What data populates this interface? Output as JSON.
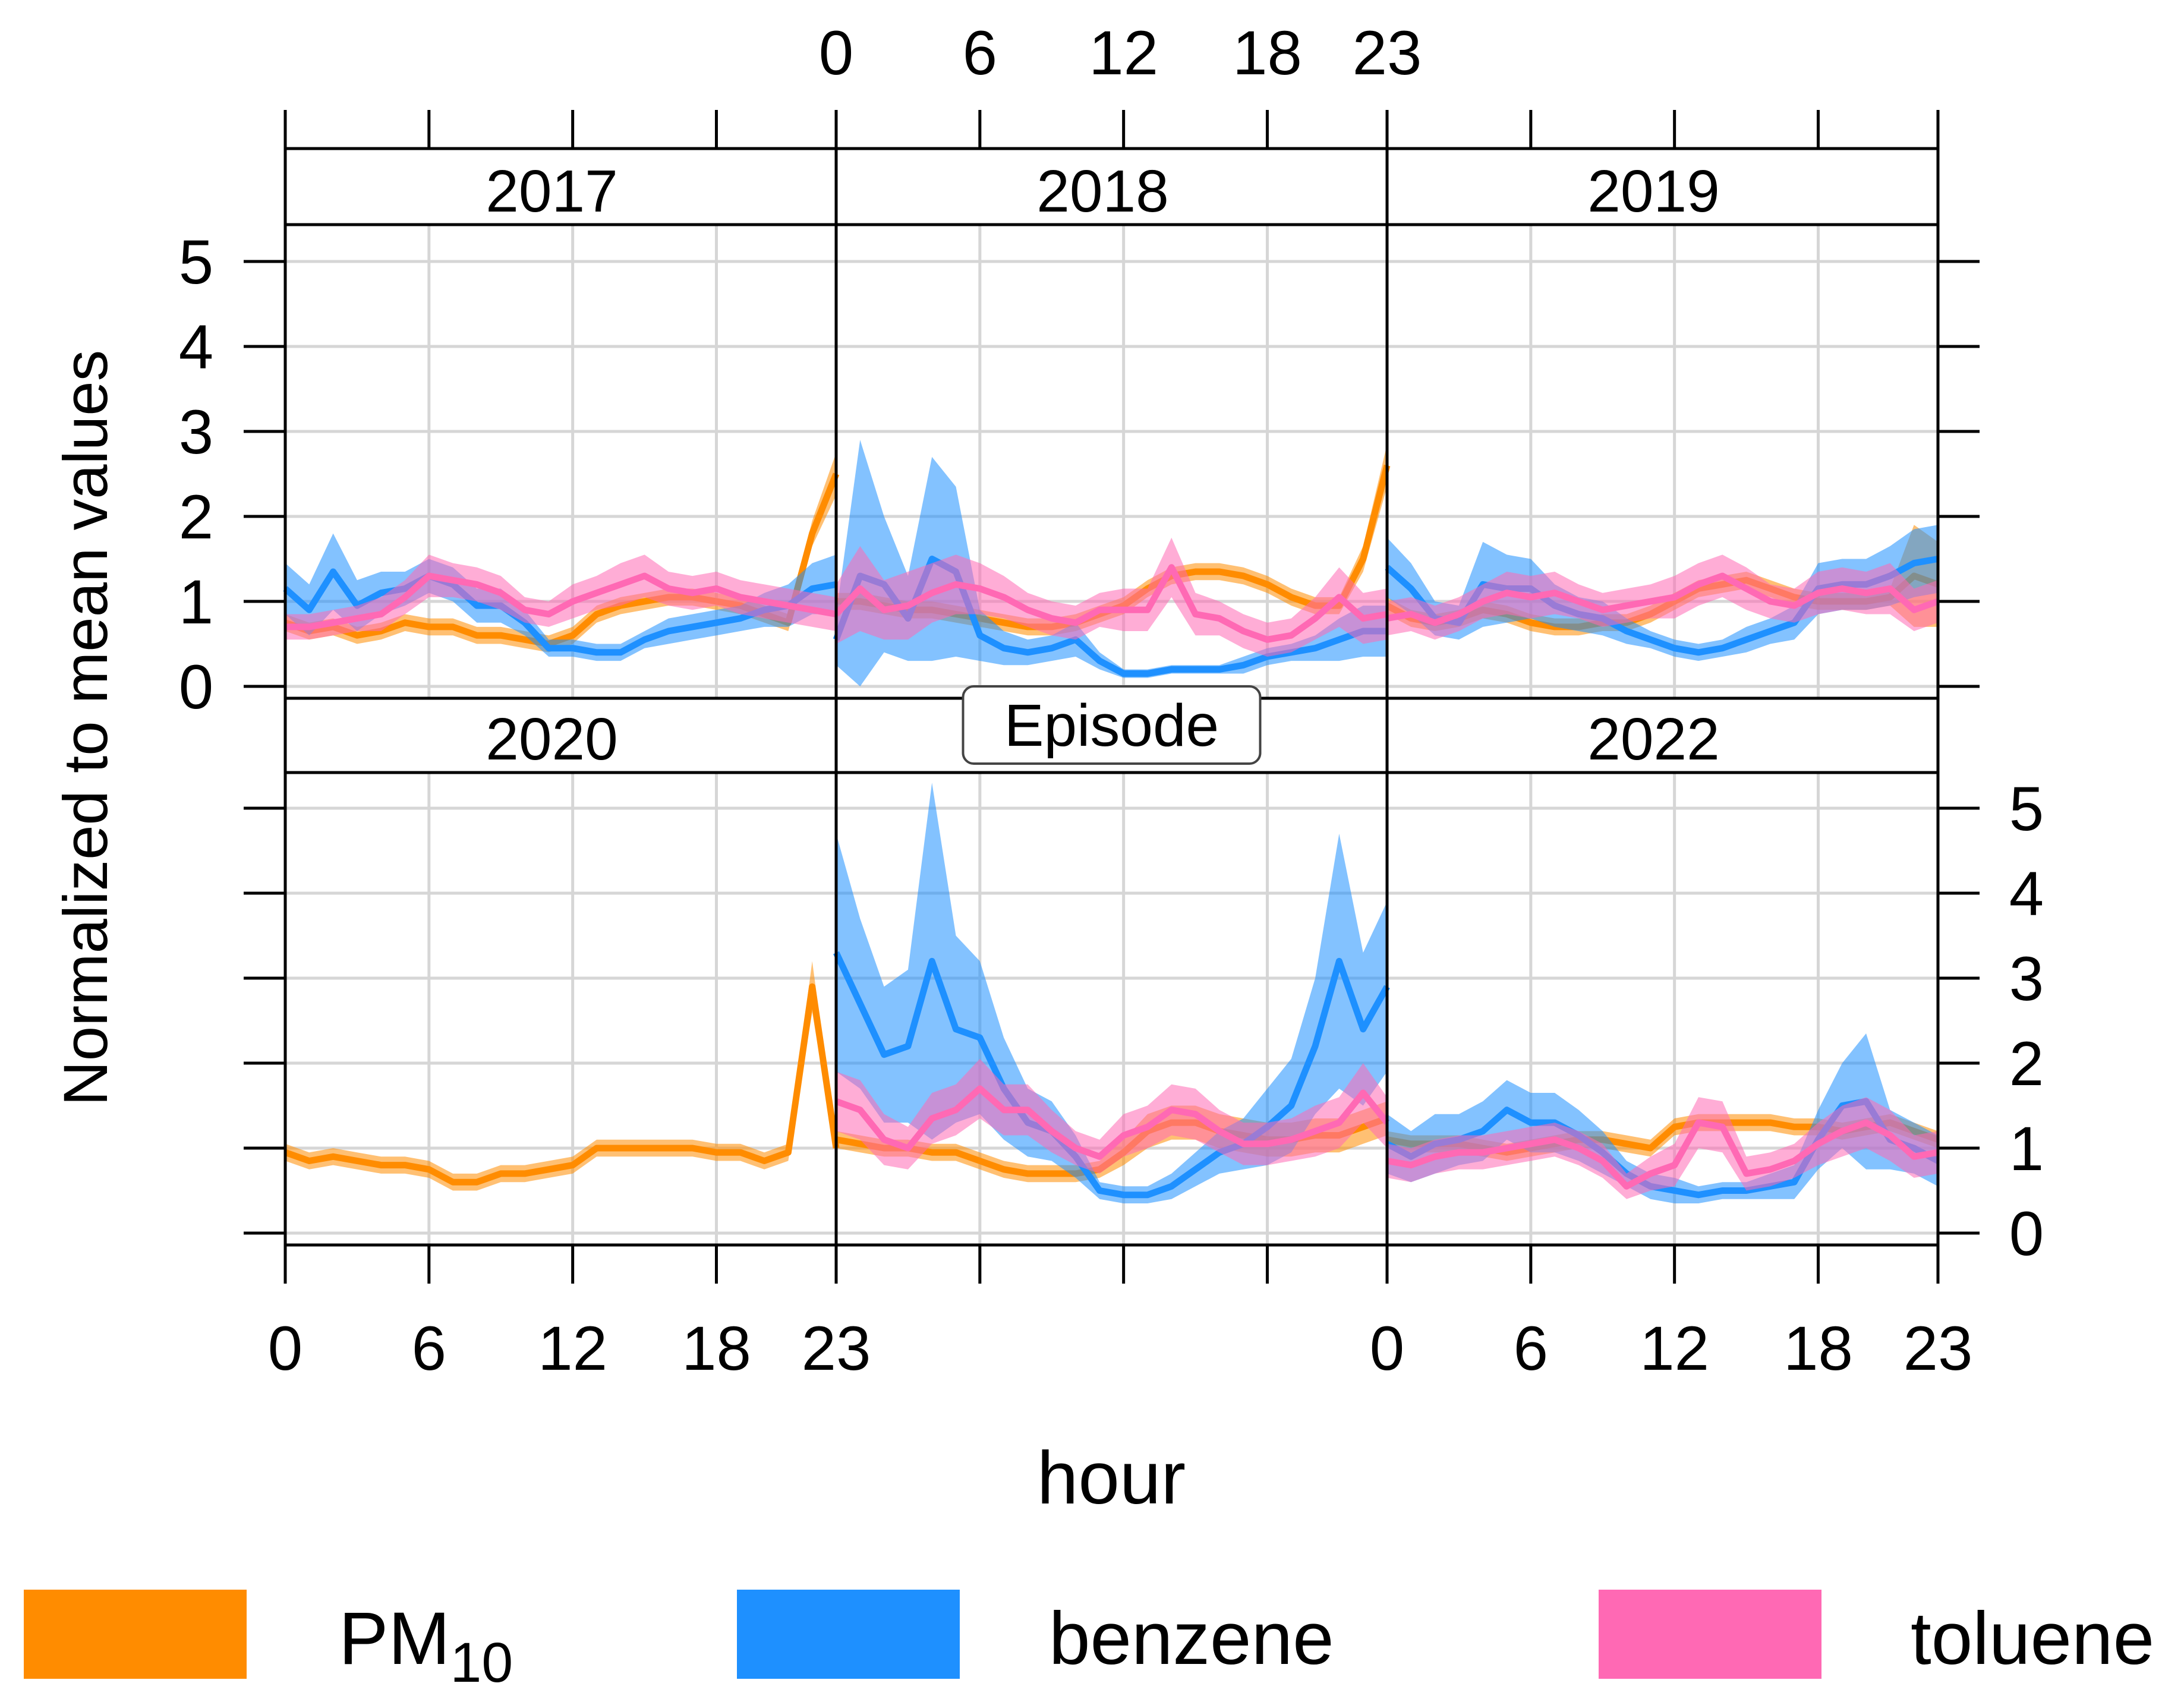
{
  "chart_data": {
    "type": "line",
    "ylabel": "Normalized to mean values",
    "xlabel": "hour",
    "xlim": [
      0,
      23
    ],
    "ylim": [
      0,
      5
    ],
    "x_ticks": [
      "0",
      "6",
      "12",
      "18",
      "23"
    ],
    "y_ticks": [
      "0",
      "1",
      "2",
      "3",
      "4",
      "5"
    ],
    "grid": true,
    "legend_position": "bottom",
    "colors": {
      "PM10": "#FF8C00",
      "benzene": "#1E90FF",
      "toluene": "#FF69B4"
    },
    "legend": [
      {
        "key": "PM10",
        "base": "PM",
        "sub": "10"
      },
      {
        "key": "benzene",
        "base": "benzene",
        "sub": ""
      },
      {
        "key": "toluene",
        "base": "toluene",
        "sub": ""
      }
    ],
    "panels": [
      {
        "label": "2017",
        "highlight": false,
        "series": {
          "PM10": {
            "values": [
              0.75,
              0.65,
              0.7,
              0.6,
              0.65,
              0.75,
              0.7,
              0.7,
              0.6,
              0.6,
              0.55,
              0.5,
              0.6,
              0.85,
              0.95,
              1.0,
              1.05,
              1.05,
              1.0,
              0.95,
              0.85,
              0.75,
              1.8,
              2.5
            ],
            "band": [
              0.1,
              0.1,
              0.1,
              0.1,
              0.1,
              0.1,
              0.1,
              0.1,
              0.1,
              0.1,
              0.1,
              0.1,
              0.1,
              0.1,
              0.1,
              0.1,
              0.1,
              0.1,
              0.1,
              0.1,
              0.1,
              0.1,
              0.15,
              0.25
            ]
          },
          "benzene": {
            "values": [
              1.15,
              0.9,
              1.35,
              0.95,
              1.1,
              1.15,
              1.3,
              1.2,
              0.95,
              0.95,
              0.75,
              0.45,
              0.45,
              0.4,
              0.4,
              0.55,
              0.65,
              0.7,
              0.75,
              0.8,
              0.9,
              0.95,
              1.15,
              1.2
            ],
            "band": [
              0.3,
              0.3,
              0.45,
              0.3,
              0.25,
              0.2,
              0.2,
              0.2,
              0.2,
              0.2,
              0.15,
              0.1,
              0.1,
              0.1,
              0.1,
              0.1,
              0.15,
              0.15,
              0.15,
              0.15,
              0.2,
              0.25,
              0.3,
              0.35
            ]
          },
          "toluene": {
            "values": [
              0.7,
              0.7,
              0.75,
              0.8,
              0.85,
              1.05,
              1.3,
              1.25,
              1.2,
              1.1,
              0.9,
              0.85,
              1.0,
              1.1,
              1.2,
              1.3,
              1.15,
              1.1,
              1.15,
              1.05,
              1.0,
              0.95,
              0.9,
              0.85
            ],
            "band": [
              0.15,
              0.15,
              0.15,
              0.15,
              0.2,
              0.2,
              0.25,
              0.2,
              0.2,
              0.2,
              0.15,
              0.15,
              0.2,
              0.2,
              0.25,
              0.25,
              0.2,
              0.2,
              0.2,
              0.2,
              0.2,
              0.2,
              0.2,
              0.2
            ]
          }
        }
      },
      {
        "label": "2018",
        "highlight": false,
        "series": {
          "PM10": {
            "values": [
              1.0,
              1.0,
              0.95,
              0.9,
              0.9,
              0.85,
              0.8,
              0.75,
              0.7,
              0.7,
              0.75,
              0.85,
              0.95,
              1.15,
              1.3,
              1.35,
              1.35,
              1.3,
              1.2,
              1.05,
              0.95,
              0.95,
              1.5,
              2.6
            ],
            "band": [
              0.1,
              0.1,
              0.1,
              0.1,
              0.1,
              0.1,
              0.1,
              0.1,
              0.1,
              0.1,
              0.1,
              0.1,
              0.1,
              0.1,
              0.1,
              0.1,
              0.1,
              0.1,
              0.1,
              0.1,
              0.1,
              0.1,
              0.15,
              0.25
            ]
          },
          "benzene": {
            "values": [
              0.55,
              1.3,
              1.2,
              0.8,
              1.5,
              1.35,
              0.6,
              0.45,
              0.4,
              0.45,
              0.55,
              0.3,
              0.15,
              0.15,
              0.2,
              0.2,
              0.2,
              0.25,
              0.35,
              0.4,
              0.45,
              0.55,
              0.65,
              0.65
            ],
            "band": [
              0.3,
              1.6,
              0.8,
              0.5,
              1.2,
              1.0,
              0.3,
              0.2,
              0.15,
              0.15,
              0.2,
              0.1,
              0.05,
              0.05,
              0.05,
              0.05,
              0.05,
              0.1,
              0.1,
              0.1,
              0.15,
              0.25,
              0.3,
              0.3
            ]
          },
          "toluene": {
            "values": [
              0.85,
              1.15,
              0.9,
              0.95,
              1.1,
              1.2,
              1.15,
              1.05,
              0.9,
              0.8,
              0.75,
              0.9,
              0.9,
              0.9,
              1.4,
              0.85,
              0.8,
              0.65,
              0.55,
              0.6,
              0.8,
              1.05,
              0.8,
              0.85
            ],
            "band": [
              0.35,
              0.5,
              0.35,
              0.4,
              0.35,
              0.35,
              0.3,
              0.25,
              0.2,
              0.2,
              0.2,
              0.2,
              0.25,
              0.25,
              0.35,
              0.25,
              0.2,
              0.2,
              0.2,
              0.2,
              0.25,
              0.35,
              0.3,
              0.3
            ]
          }
        }
      },
      {
        "label": "2019",
        "highlight": false,
        "series": {
          "PM10": {
            "values": [
              0.95,
              0.8,
              0.75,
              0.8,
              0.9,
              0.85,
              0.75,
              0.7,
              0.7,
              0.75,
              0.75,
              0.85,
              1.0,
              1.15,
              1.2,
              1.25,
              1.15,
              1.05,
              1.0,
              1.0,
              1.0,
              1.05,
              1.3,
              1.2
            ],
            "band": [
              0.1,
              0.1,
              0.1,
              0.1,
              0.1,
              0.1,
              0.1,
              0.1,
              0.1,
              0.1,
              0.1,
              0.1,
              0.1,
              0.1,
              0.1,
              0.1,
              0.1,
              0.1,
              0.1,
              0.1,
              0.1,
              0.1,
              0.6,
              0.5
            ]
          },
          "benzene": {
            "values": [
              1.4,
              1.15,
              0.8,
              0.75,
              1.2,
              1.15,
              1.15,
              0.95,
              0.85,
              0.8,
              0.65,
              0.55,
              0.45,
              0.4,
              0.45,
              0.55,
              0.65,
              0.75,
              1.15,
              1.2,
              1.2,
              1.3,
              1.45,
              1.5
            ],
            "band": [
              0.35,
              0.3,
              0.2,
              0.2,
              0.5,
              0.4,
              0.35,
              0.25,
              0.2,
              0.2,
              0.15,
              0.1,
              0.1,
              0.1,
              0.1,
              0.15,
              0.15,
              0.2,
              0.3,
              0.3,
              0.3,
              0.35,
              0.4,
              0.4
            ]
          },
          "toluene": {
            "values": [
              0.8,
              0.85,
              0.75,
              0.85,
              1.0,
              1.1,
              1.05,
              1.1,
              1.0,
              0.9,
              0.95,
              1.0,
              1.05,
              1.2,
              1.3,
              1.15,
              1.0,
              0.95,
              1.1,
              1.15,
              1.1,
              1.15,
              0.9,
              1.0
            ],
            "band": [
              0.2,
              0.2,
              0.2,
              0.2,
              0.2,
              0.25,
              0.25,
              0.25,
              0.2,
              0.2,
              0.2,
              0.2,
              0.25,
              0.25,
              0.25,
              0.25,
              0.2,
              0.2,
              0.25,
              0.25,
              0.25,
              0.3,
              0.25,
              0.25
            ]
          }
        }
      },
      {
        "label": "2020",
        "highlight": false,
        "series": {
          "PM10": {
            "values": [
              0.95,
              0.85,
              0.9,
              0.85,
              0.8,
              0.8,
              0.75,
              0.6,
              0.6,
              0.7,
              0.7,
              0.75,
              0.8,
              1.0,
              1.0,
              1.0,
              1.0,
              1.0,
              0.95,
              0.95,
              0.85,
              0.95,
              2.9,
              1.0
            ],
            "band": [
              0.1,
              0.1,
              0.1,
              0.1,
              0.1,
              0.1,
              0.1,
              0.1,
              0.1,
              0.1,
              0.1,
              0.1,
              0.1,
              0.1,
              0.1,
              0.1,
              0.1,
              0.1,
              0.1,
              0.1,
              0.1,
              0.1,
              0.3,
              0.1
            ]
          }
        }
      },
      {
        "label": "Episode",
        "highlight": true,
        "series": {
          "PM10": {
            "values": [
              1.1,
              1.05,
              1.0,
              1.0,
              0.95,
              0.95,
              0.85,
              0.75,
              0.7,
              0.7,
              0.7,
              0.75,
              0.95,
              1.2,
              1.3,
              1.3,
              1.2,
              1.15,
              1.1,
              1.1,
              1.15,
              1.15,
              1.25,
              1.35
            ],
            "band": [
              0.1,
              0.1,
              0.1,
              0.1,
              0.1,
              0.1,
              0.1,
              0.1,
              0.1,
              0.1,
              0.1,
              0.1,
              0.15,
              0.2,
              0.2,
              0.2,
              0.2,
              0.2,
              0.2,
              0.2,
              0.2,
              0.2,
              0.2,
              0.2
            ]
          },
          "benzene": {
            "values": [
              3.3,
              2.7,
              2.1,
              2.2,
              3.2,
              2.4,
              2.3,
              1.7,
              1.3,
              1.2,
              0.9,
              0.5,
              0.45,
              0.45,
              0.55,
              0.75,
              0.95,
              1.05,
              1.25,
              1.5,
              2.2,
              3.2,
              2.4,
              2.9
            ],
            "band": [
              1.4,
              1.0,
              0.8,
              0.9,
              2.1,
              1.1,
              0.9,
              0.6,
              0.4,
              0.35,
              0.25,
              0.1,
              0.1,
              0.1,
              0.15,
              0.2,
              0.25,
              0.3,
              0.45,
              0.55,
              0.8,
              1.5,
              0.9,
              1.0
            ]
          },
          "toluene": {
            "values": [
              1.55,
              1.45,
              1.1,
              1.0,
              1.35,
              1.45,
              1.7,
              1.45,
              1.45,
              1.2,
              1.0,
              0.9,
              1.15,
              1.25,
              1.45,
              1.4,
              1.2,
              1.05,
              1.05,
              1.1,
              1.2,
              1.3,
              1.65,
              1.3
            ],
            "band": [
              0.35,
              0.35,
              0.3,
              0.25,
              0.3,
              0.3,
              0.35,
              0.3,
              0.3,
              0.25,
              0.2,
              0.2,
              0.25,
              0.25,
              0.3,
              0.3,
              0.25,
              0.25,
              0.25,
              0.25,
              0.3,
              0.3,
              0.35,
              0.3
            ]
          }
        }
      },
      {
        "label": "2022",
        "highlight": false,
        "series": {
          "PM10": {
            "values": [
              1.1,
              1.05,
              1.05,
              1.05,
              1.0,
              0.95,
              1.0,
              1.05,
              1.1,
              1.1,
              1.05,
              1.0,
              1.25,
              1.3,
              1.3,
              1.3,
              1.3,
              1.25,
              1.25,
              1.2,
              1.25,
              1.3,
              1.2,
              1.1
            ],
            "band": [
              0.1,
              0.1,
              0.1,
              0.1,
              0.1,
              0.1,
              0.1,
              0.1,
              0.1,
              0.1,
              0.1,
              0.1,
              0.1,
              0.1,
              0.1,
              0.1,
              0.1,
              0.1,
              0.1,
              0.1,
              0.1,
              0.1,
              0.1,
              0.1
            ]
          },
          "benzene": {
            "values": [
              1.05,
              0.9,
              1.05,
              1.1,
              1.2,
              1.45,
              1.3,
              1.3,
              1.15,
              0.95,
              0.7,
              0.55,
              0.5,
              0.45,
              0.5,
              0.5,
              0.55,
              0.6,
              1.1,
              1.5,
              1.55,
              1.1,
              1.0,
              0.85
            ],
            "band": [
              0.35,
              0.3,
              0.35,
              0.3,
              0.35,
              0.35,
              0.35,
              0.35,
              0.3,
              0.25,
              0.15,
              0.15,
              0.15,
              0.1,
              0.1,
              0.1,
              0.15,
              0.2,
              0.35,
              0.5,
              0.8,
              0.35,
              0.3,
              0.3
            ]
          },
          "toluene": {
            "values": [
              0.85,
              0.8,
              0.9,
              0.95,
              0.95,
              1.0,
              1.05,
              1.1,
              1.0,
              0.85,
              0.55,
              0.7,
              0.8,
              1.3,
              1.25,
              0.7,
              0.75,
              0.85,
              1.05,
              1.2,
              1.3,
              1.15,
              0.9,
              0.95
            ],
            "band": [
              0.2,
              0.2,
              0.2,
              0.2,
              0.2,
              0.2,
              0.2,
              0.2,
              0.2,
              0.2,
              0.15,
              0.2,
              0.25,
              0.3,
              0.3,
              0.2,
              0.2,
              0.2,
              0.25,
              0.3,
              0.3,
              0.3,
              0.25,
              0.25
            ]
          }
        }
      }
    ]
  }
}
